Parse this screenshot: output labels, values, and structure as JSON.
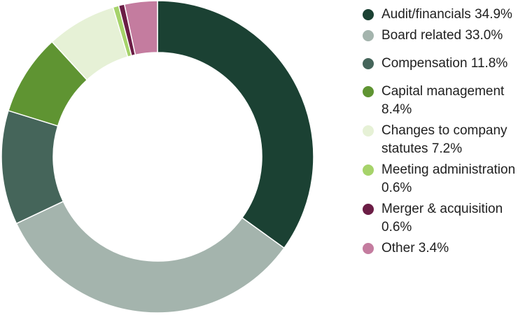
{
  "chart_data": {
    "type": "pie",
    "title": "",
    "categories": [
      "Audit/financials",
      "Board related",
      "Compensation",
      "Capital management",
      "Changes to company statutes",
      "Meeting administration",
      "Merger & acquisition",
      "Other"
    ],
    "values": [
      34.9,
      33.0,
      11.8,
      8.4,
      7.2,
      0.6,
      0.6,
      3.4
    ],
    "colors": [
      "#1b4133",
      "#a4b4ad",
      "#45655a",
      "#5f9432",
      "#e6f1d6",
      "#a6d36a",
      "#6b1d45",
      "#c47c9f"
    ],
    "legend": {
      "position": "right",
      "entries": [
        "Audit/financials 34.9%",
        "Board related 33.0%",
        "Compensation 11.8%",
        "Capital management 8.4%",
        "Changes to company statutes 7.2%",
        "Meeting administration 0.6%",
        "Merger & acquisition 0.6%",
        "Other 3.4%"
      ]
    }
  }
}
